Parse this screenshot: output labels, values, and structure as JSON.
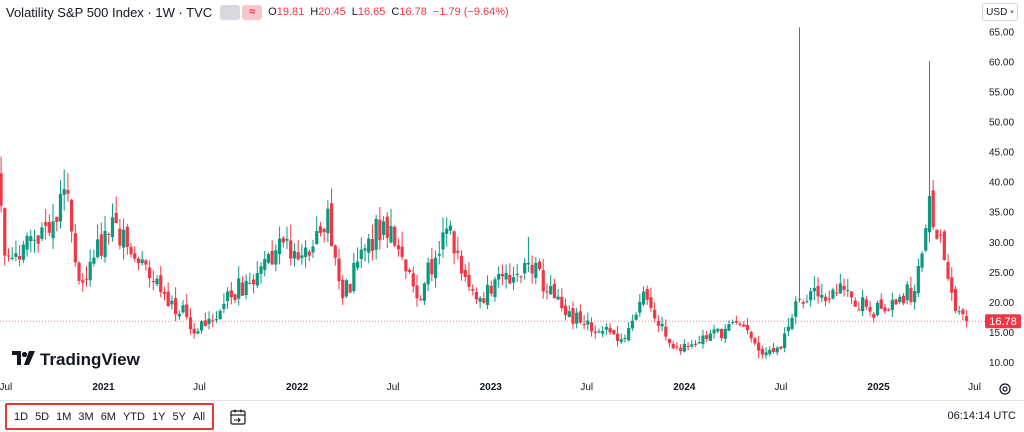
{
  "legend": {
    "title": "Volatility S&P 500 Index · 1W · TVC",
    "pill_icon": "approx-icon",
    "open_label": "O",
    "open_value": "19.81",
    "high_label": "H",
    "high_value": "20.45",
    "low_label": "L",
    "low_value": "16.65",
    "close_label": "C",
    "close_value": "16.78",
    "change": "−1.79 (−9.64%)"
  },
  "currency": {
    "label": "USD",
    "icon": "chevron-down-icon"
  },
  "logo": {
    "icon": "tradingview-logo-icon",
    "text": "TradingView"
  },
  "colors": {
    "up": "#089981",
    "down": "#f23645",
    "axis_text": "#131722",
    "price_label_bg": "#f23645"
  },
  "bottom_bar": {
    "ranges": [
      "1D",
      "5D",
      "1M",
      "3M",
      "6M",
      "YTD",
      "1Y",
      "5Y",
      "All"
    ],
    "calendar_icon": "calendar-range-icon",
    "time": "06:14:14 UTC"
  },
  "settings_icon": "settings-gear-icon",
  "chart_data": {
    "type": "candlestick",
    "symbol": "Volatility S&P 500 Index",
    "interval": "1W",
    "x_range": [
      "2020-06-20",
      "2025-07-15"
    ],
    "ylim": [
      9.0,
      65.9
    ],
    "y_ticks": [
      10,
      15,
      20,
      25,
      30,
      35,
      40,
      45,
      50,
      55,
      60,
      65
    ],
    "y_tick_labels": [
      "10.00",
      "15.00",
      "20.00",
      "25.00",
      "30.00",
      "35.00",
      "40.00",
      "45.00",
      "50.00",
      "55.00",
      "60.00",
      "65.00"
    ],
    "x_ticks": [
      {
        "date": "2020-07-01",
        "label": "Jul",
        "bold": false
      },
      {
        "date": "2021-01-01",
        "label": "2021",
        "bold": true
      },
      {
        "date": "2021-07-01",
        "label": "Jul",
        "bold": false
      },
      {
        "date": "2022-01-01",
        "label": "2022",
        "bold": true
      },
      {
        "date": "2022-07-01",
        "label": "Jul",
        "bold": false
      },
      {
        "date": "2023-01-01",
        "label": "2023",
        "bold": true
      },
      {
        "date": "2023-07-01",
        "label": "Jul",
        "bold": false
      },
      {
        "date": "2024-01-01",
        "label": "2024",
        "bold": true
      },
      {
        "date": "2024-07-01",
        "label": "Jul",
        "bold": false
      },
      {
        "date": "2025-01-01",
        "label": "2025",
        "bold": true
      },
      {
        "date": "2025-07-01",
        "label": "Jul",
        "bold": false
      }
    ],
    "last_price": 16.78,
    "last_price_label": "16.78",
    "key_closes": [
      {
        "date": "2020-06-22",
        "close": 36.0
      },
      {
        "date": "2020-06-29",
        "close": 27.7
      },
      {
        "date": "2020-09-21",
        "close": 31.5
      },
      {
        "date": "2020-10-26",
        "close": 38.0
      },
      {
        "date": "2020-11-16",
        "close": 23.5
      },
      {
        "date": "2021-01-25",
        "close": 33.1
      },
      {
        "date": "2021-02-22",
        "close": 27.9
      },
      {
        "date": "2021-05-10",
        "close": 20.2
      },
      {
        "date": "2021-06-28",
        "close": 15.1
      },
      {
        "date": "2021-11-22",
        "close": 28.6
      },
      {
        "date": "2022-01-24",
        "close": 27.7
      },
      {
        "date": "2022-02-28",
        "close": 35.5
      },
      {
        "date": "2022-03-28",
        "close": 20.6
      },
      {
        "date": "2022-05-09",
        "close": 28.9
      },
      {
        "date": "2022-06-13",
        "close": 33.4
      },
      {
        "date": "2022-08-15",
        "close": 20.6
      },
      {
        "date": "2022-10-10",
        "close": 32.2
      },
      {
        "date": "2022-12-05",
        "close": 20.4
      },
      {
        "date": "2023-03-13",
        "close": 26.5
      },
      {
        "date": "2023-05-22",
        "close": 17.8
      },
      {
        "date": "2023-09-04",
        "close": 13.8
      },
      {
        "date": "2023-10-16",
        "close": 21.7
      },
      {
        "date": "2023-12-11",
        "close": 12.3
      },
      {
        "date": "2024-04-15",
        "close": 16.2
      },
      {
        "date": "2024-05-20",
        "close": 11.9
      },
      {
        "date": "2024-07-01",
        "close": 12.2
      },
      {
        "date": "2024-08-05",
        "close": 20.4
      },
      {
        "date": "2024-10-28",
        "close": 22.0
      },
      {
        "date": "2024-12-16",
        "close": 18.4
      },
      {
        "date": "2025-03-10",
        "close": 21.8
      },
      {
        "date": "2025-04-07",
        "close": 37.6
      },
      {
        "date": "2025-05-26",
        "close": 18.5
      },
      {
        "date": "2025-06-16",
        "close": 16.78
      }
    ],
    "key_highs": [
      {
        "date": "2020-06-22",
        "high": 44.2
      },
      {
        "date": "2021-01-25",
        "high": 37.5
      },
      {
        "date": "2022-03-07",
        "high": 38.9
      },
      {
        "date": "2023-03-13",
        "high": 30.8
      },
      {
        "date": "2024-08-05",
        "high": 65.7
      },
      {
        "date": "2025-04-07",
        "high": 60.1
      }
    ],
    "key_lows": [
      {
        "date": "2024-05-20",
        "low": 10.6
      },
      {
        "date": "2024-06-24",
        "low": 11.1
      }
    ]
  }
}
